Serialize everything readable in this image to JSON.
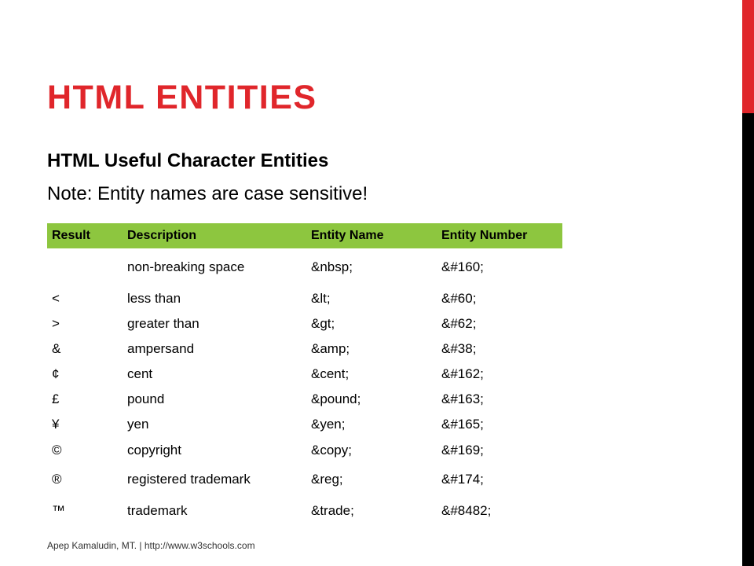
{
  "slide": {
    "title": "HTML ENTITIES",
    "subtitle": "HTML Useful Character Entities",
    "note": "Note: Entity names are case sensitive!"
  },
  "table": {
    "headers": [
      "Result",
      "Description",
      "Entity Name",
      "Entity Number"
    ],
    "rows": [
      {
        "result": "",
        "description": "non-breaking space",
        "entity_name": "&nbsp;",
        "entity_number": "&#160;"
      },
      {
        "result": "<",
        "description": "less than",
        "entity_name": "&lt;",
        "entity_number": "&#60;"
      },
      {
        "result": ">",
        "description": "greater than",
        "entity_name": "&gt;",
        "entity_number": "&#62;"
      },
      {
        "result": "&",
        "description": "ampersand",
        "entity_name": "&amp;",
        "entity_number": "&#38;"
      },
      {
        "result": "¢",
        "description": "cent",
        "entity_name": "&cent;",
        "entity_number": "&#162;"
      },
      {
        "result": "£",
        "description": "pound",
        "entity_name": "&pound;",
        "entity_number": "&#163;"
      },
      {
        "result": "¥",
        "description": "yen",
        "entity_name": "&yen;",
        "entity_number": "&#165;"
      },
      {
        "result": "©",
        "description": "copyright",
        "entity_name": "&copy;",
        "entity_number": "&#169;"
      },
      {
        "result": "®",
        "description": "registered trademark",
        "entity_name": "&reg;",
        "entity_number": "&#174;"
      },
      {
        "result": "™",
        "description": "trademark",
        "entity_name": "&trade;",
        "entity_number": "&#8482;"
      }
    ]
  },
  "footer": {
    "text": "Apep Kamaludin, MT.  |  http://www.w3schools.com"
  },
  "colors": {
    "accent_red": "#e0262b",
    "header_green": "#8dc63f",
    "side_black": "#000000"
  }
}
